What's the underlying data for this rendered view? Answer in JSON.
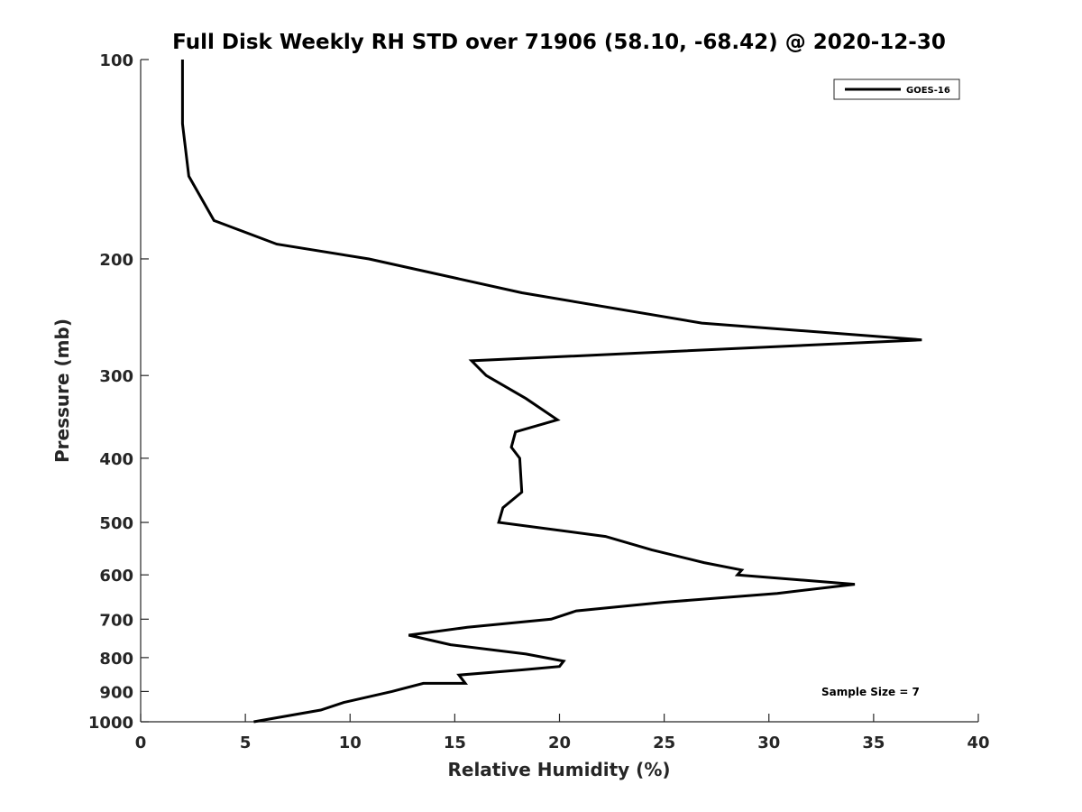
{
  "chart_data": {
    "type": "line",
    "title": "Full Disk Weekly RH STD over 71906 (58.10, -68.42) @ 2020-12-30",
    "xlabel": "Relative Humidity (%)",
    "ylabel": "Pressure (mb)",
    "xlim": [
      0,
      40
    ],
    "ylim": [
      100,
      1000
    ],
    "y_scale": "log",
    "y_reversed": true,
    "x_ticks": [
      "0",
      "5",
      "10",
      "15",
      "20",
      "25",
      "30",
      "35",
      "40"
    ],
    "y_ticks": [
      "100",
      "200",
      "300",
      "400",
      "500",
      "600",
      "700",
      "800",
      "900",
      "1000"
    ],
    "grid": false,
    "legend_position": "top-right",
    "annotation": "Sample Size = 7",
    "line_color": "#000000",
    "series": [
      {
        "name": "GOES-16",
        "x": [
          2.0,
          2.0,
          2.3,
          3.5,
          6.5,
          10.9,
          18.2,
          26.8,
          37.3,
          15.8,
          16.5,
          18.4,
          19.9,
          17.9,
          17.7,
          18.1,
          18.2,
          17.3,
          17.1,
          22.2,
          24.4,
          26.9,
          28.7,
          28.5,
          34.1,
          30.4,
          25.0,
          20.8,
          19.6,
          15.6,
          12.8,
          14.8,
          18.4,
          20.2,
          20.0,
          18.2,
          15.2,
          15.5,
          13.5,
          12.0,
          9.7,
          8.6,
          5.4
        ],
        "y": [
          100,
          125,
          150,
          175,
          190,
          200,
          225,
          250,
          265,
          285,
          300,
          325,
          350,
          365,
          385,
          400,
          450,
          475,
          500,
          525,
          550,
          575,
          590,
          600,
          620,
          640,
          660,
          680,
          700,
          720,
          740,
          765,
          790,
          810,
          825,
          835,
          850,
          875,
          875,
          900,
          935,
          960,
          1000
        ]
      }
    ]
  }
}
